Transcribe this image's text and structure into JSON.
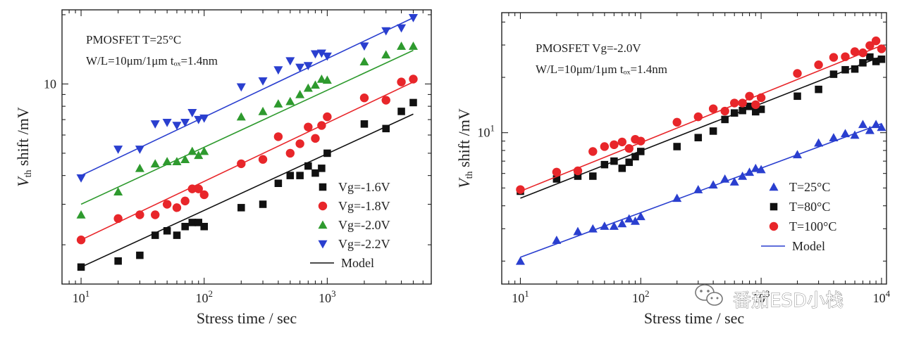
{
  "chart_data": [
    {
      "type": "scatter",
      "xscale": "log",
      "yscale": "log",
      "xlim": [
        7,
        7000
      ],
      "ylim": [
        1.35,
        21
      ],
      "xlabel": "Stress time / sec",
      "ylabel_main": "V",
      "ylabel_sub": "th",
      "ylabel_rest": " shift /mV",
      "xticks": [
        {
          "value": 10,
          "base": "10",
          "exp": "1"
        },
        {
          "value": 100,
          "base": "10",
          "exp": "2"
        },
        {
          "value": 1000,
          "base": "10",
          "exp": "3"
        }
      ],
      "yticks": [
        {
          "value": 10,
          "label": "10"
        }
      ],
      "annotations": [
        {
          "text": "PMOSFET  T=25°C"
        },
        {
          "text": "W/L=10μm/1μm tₒₓ=1.4nm"
        }
      ],
      "legend_position": "bottom-right",
      "model_label": "Model",
      "series": [
        {
          "name": "Vg=-1.6V",
          "color": "#111111",
          "marker": "square",
          "x": [
            10,
            20,
            30,
            40,
            50,
            60,
            70,
            80,
            90,
            100,
            200,
            300,
            400,
            500,
            600,
            700,
            800,
            900,
            1000,
            2000,
            3000,
            4000,
            5000
          ],
          "y": [
            1.6,
            1.7,
            1.8,
            2.2,
            2.3,
            2.2,
            2.4,
            2.5,
            2.5,
            2.4,
            2.9,
            3.0,
            3.7,
            4.0,
            4.0,
            4.4,
            4.1,
            4.3,
            5.0,
            6.7,
            6.4,
            7.6,
            8.3
          ],
          "model": [
            [
              10,
              1.6
            ],
            [
              5000,
              7.4
            ]
          ]
        },
        {
          "name": "Vg=-1.8V",
          "color": "#e8262a",
          "marker": "circle",
          "x": [
            10,
            20,
            30,
            40,
            50,
            60,
            70,
            80,
            90,
            100,
            200,
            300,
            400,
            500,
            600,
            700,
            800,
            900,
            1000,
            2000,
            3000,
            4000,
            5000
          ],
          "y": [
            2.1,
            2.6,
            2.7,
            2.7,
            3.0,
            2.9,
            3.1,
            3.5,
            3.5,
            3.3,
            4.5,
            4.7,
            5.9,
            5.0,
            5.5,
            6.5,
            5.8,
            6.6,
            7.2,
            8.7,
            8.5,
            10.2,
            10.5
          ],
          "model": [
            [
              10,
              2.1
            ],
            [
              5000,
              10.2
            ]
          ]
        },
        {
          "name": "Vg=-2.0V",
          "color": "#2e9a2e",
          "marker": "triangle-up",
          "x": [
            10,
            20,
            30,
            40,
            50,
            60,
            70,
            80,
            90,
            100,
            200,
            300,
            400,
            500,
            600,
            700,
            800,
            900,
            1000,
            2000,
            3000,
            4000,
            5000
          ],
          "y": [
            2.7,
            3.4,
            4.3,
            4.5,
            4.6,
            4.6,
            4.7,
            5.1,
            4.9,
            5.1,
            7.2,
            7.6,
            8.2,
            8.4,
            9.0,
            9.6,
            9.9,
            10.5,
            10.4,
            12.5,
            13.4,
            14.6,
            14.6
          ],
          "model": [
            [
              10,
              3.0
            ],
            [
              5000,
              14.0
            ]
          ]
        },
        {
          "name": "Vg=-2.2V",
          "color": "#2a3fcf",
          "marker": "triangle-down",
          "x": [
            10,
            20,
            30,
            40,
            50,
            60,
            70,
            80,
            90,
            100,
            200,
            300,
            400,
            500,
            600,
            700,
            800,
            900,
            1000,
            2000,
            3000,
            4000,
            5000
          ],
          "y": [
            3.9,
            5.2,
            5.2,
            6.7,
            6.8,
            6.6,
            6.8,
            7.5,
            7.0,
            7.1,
            9.7,
            10.3,
            11.5,
            12.6,
            11.8,
            12.0,
            13.5,
            13.6,
            13.2,
            14.6,
            17.0,
            17.5,
            19.4
          ],
          "model": [
            [
              10,
              4.0
            ],
            [
              5000,
              19.4
            ]
          ]
        }
      ]
    },
    {
      "type": "scatter",
      "xscale": "log",
      "yscale": "log",
      "xlim": [
        7,
        11000
      ],
      "ylim": [
        1.5,
        45
      ],
      "xlabel": "Stress time / sec",
      "ylabel_main": "V",
      "ylabel_sub": "th",
      "ylabel_rest": " shift /mV",
      "xticks": [
        {
          "value": 10,
          "base": "10",
          "exp": "1"
        },
        {
          "value": 100,
          "base": "10",
          "exp": "2"
        },
        {
          "value": 1000,
          "base": "10",
          "exp": "3"
        },
        {
          "value": 10000,
          "base": "10",
          "exp": "4"
        }
      ],
      "yticks": [
        {
          "value": 10,
          "label": "10"
        }
      ],
      "yticks_label_pos": [
        {
          "value": 10,
          "base": "10",
          "exp": "1"
        }
      ],
      "annotations": [
        {
          "text": "PMOSFET  Vg=-2.0V"
        },
        {
          "text": "W/L=10μm/1μm tₒₓ=1.4nm"
        }
      ],
      "legend_position": "bottom-right",
      "model_label": "Model",
      "series": [
        {
          "name": "T=25°C",
          "color": "#2a3fcf",
          "marker": "triangle-up",
          "x": [
            10,
            20,
            30,
            40,
            50,
            60,
            70,
            80,
            90,
            100,
            200,
            300,
            400,
            500,
            600,
            700,
            800,
            900,
            1000,
            2000,
            3000,
            4000,
            5000,
            6000,
            7000,
            8000,
            9000,
            10000
          ],
          "y": [
            2.0,
            2.6,
            2.9,
            3.0,
            3.1,
            3.1,
            3.2,
            3.4,
            3.3,
            3.5,
            4.4,
            4.9,
            5.2,
            5.6,
            5.4,
            5.8,
            6.1,
            6.4,
            6.3,
            7.6,
            8.8,
            9.4,
            9.9,
            9.7,
            11.1,
            10.3,
            11.1,
            10.7
          ],
          "model": [
            [
              10,
              2.1
            ],
            [
              10000,
              11.2
            ]
          ]
        },
        {
          "name": "T=80°C",
          "color": "#111111",
          "marker": "square",
          "x": [
            10,
            20,
            30,
            40,
            50,
            60,
            70,
            80,
            90,
            100,
            200,
            300,
            400,
            500,
            600,
            700,
            800,
            900,
            1000,
            2000,
            3000,
            4000,
            5000,
            6000,
            7000,
            8000,
            9000,
            10000
          ],
          "y": [
            4.8,
            5.6,
            5.8,
            5.8,
            6.7,
            7.0,
            6.4,
            6.9,
            7.4,
            7.9,
            8.4,
            9.4,
            10.2,
            11.8,
            12.8,
            13.2,
            13.9,
            13.0,
            13.4,
            15.8,
            17.2,
            20.8,
            22.0,
            22.2,
            24.0,
            25.8,
            24.4,
            25.1
          ],
          "model": [
            [
              10,
              4.4
            ],
            [
              10000,
              26.0
            ]
          ]
        },
        {
          "name": "T=100°C",
          "color": "#e8262a",
          "marker": "circle",
          "x": [
            10,
            20,
            30,
            40,
            50,
            60,
            70,
            80,
            90,
            100,
            200,
            300,
            400,
            500,
            600,
            700,
            800,
            900,
            1000,
            2000,
            3000,
            4000,
            5000,
            6000,
            7000,
            8000,
            9000,
            10000
          ],
          "y": [
            4.9,
            6.1,
            6.2,
            7.9,
            8.4,
            8.6,
            8.9,
            8.2,
            9.2,
            9.0,
            11.4,
            12.2,
            13.5,
            13.1,
            14.5,
            14.5,
            15.8,
            14.2,
            15.5,
            21.0,
            23.4,
            25.7,
            25.9,
            27.6,
            27.2,
            29.8,
            31.6,
            28.6
          ],
          "model": [
            [
              10,
              4.8
            ],
            [
              10000,
              29.8
            ]
          ]
        }
      ]
    }
  ],
  "watermark": {
    "text": "番茄ESD小栈"
  }
}
